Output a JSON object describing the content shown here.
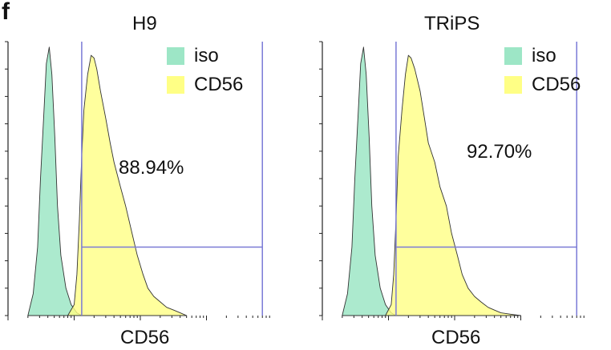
{
  "panel_label": "f",
  "chart_data": [
    {
      "type": "area",
      "title": "H9",
      "xlabel": "CD56",
      "ylabel": "",
      "x_scale": "log",
      "xlim": [
        1,
        10000
      ],
      "ylim": [
        0,
        100
      ],
      "gate": {
        "x_range": [
          13,
          7000
        ],
        "y": 25
      },
      "gate_percent_label": "88.94%",
      "legend": "top-right",
      "series": [
        {
          "name": "iso",
          "color": "#9de6c6",
          "x": [
            2,
            2.4,
            2.8,
            3.1,
            3.5,
            3.8,
            4.2,
            4.6,
            5.1,
            5.6,
            6.3,
            7.5,
            9,
            11,
            13
          ],
          "y": [
            0,
            8,
            25,
            50,
            75,
            92,
            98,
            88,
            65,
            40,
            22,
            10,
            4,
            1,
            0
          ]
        },
        {
          "name": "CD56",
          "color": "#ffff85",
          "x": [
            8,
            10,
            11,
            12,
            13,
            14,
            16,
            18,
            20,
            22,
            25,
            30,
            35,
            40,
            50,
            60,
            75,
            90,
            110,
            130,
            160,
            200,
            250,
            320,
            400,
            500
          ],
          "y": [
            0,
            4,
            15,
            35,
            58,
            75,
            88,
            95,
            94,
            90,
            82,
            72,
            63,
            56,
            47,
            40,
            30,
            22,
            15,
            10,
            7,
            5,
            3,
            2,
            1,
            0
          ]
        }
      ]
    },
    {
      "type": "area",
      "title": "TRiPS",
      "xlabel": "CD56",
      "ylabel": "",
      "x_scale": "log",
      "xlim": [
        1,
        10000
      ],
      "ylim": [
        0,
        100
      ],
      "gate": {
        "x_range": [
          13,
          7000
        ],
        "y": 25
      },
      "gate_percent_label": "92.70%",
      "legend": "top-right",
      "series": [
        {
          "name": "iso",
          "color": "#9de6c6",
          "x": [
            2,
            2.4,
            2.8,
            3.1,
            3.5,
            3.8,
            4.2,
            4.6,
            5.1,
            5.6,
            6.3,
            7.5,
            9,
            11,
            13
          ],
          "y": [
            0,
            8,
            25,
            50,
            75,
            92,
            98,
            88,
            65,
            40,
            22,
            10,
            4,
            1,
            0
          ]
        },
        {
          "name": "CD56",
          "color": "#ffff85",
          "x": [
            9,
            11,
            12,
            13,
            14,
            16,
            18,
            20,
            22,
            25,
            30,
            35,
            40,
            50,
            60,
            75,
            90,
            110,
            130,
            160,
            200,
            250,
            320,
            400,
            500,
            700,
            1000
          ],
          "y": [
            0,
            4,
            15,
            35,
            58,
            75,
            88,
            95,
            94,
            90,
            82,
            72,
            63,
            56,
            47,
            40,
            30,
            22,
            15,
            10,
            7,
            5,
            3,
            2,
            1,
            0.5,
            0
          ]
        }
      ]
    }
  ]
}
